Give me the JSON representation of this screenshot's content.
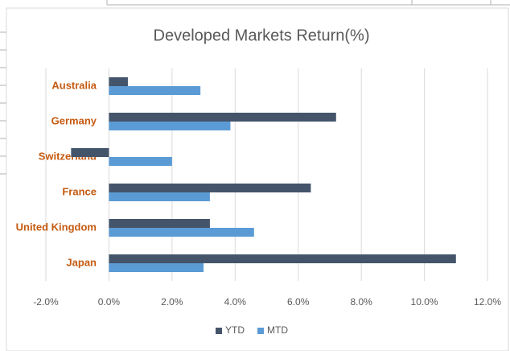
{
  "chart_data": {
    "type": "bar",
    "orientation": "horizontal",
    "title": "Developed Markets Return(%)",
    "categories": [
      "Australia",
      "Germany",
      "Switzerland",
      "France",
      "United Kingdom",
      "Japan"
    ],
    "series": [
      {
        "name": "YTD",
        "color": "#44546a",
        "values": [
          0.6,
          7.2,
          -1.2,
          6.4,
          3.2,
          11.0
        ]
      },
      {
        "name": "MTD",
        "color": "#5b9bd5",
        "values": [
          2.9,
          3.85,
          2.0,
          3.2,
          4.6,
          3.0
        ]
      }
    ],
    "xlim": [
      -2,
      12
    ],
    "xticks": [
      {
        "value": -2,
        "label": "-2.0%"
      },
      {
        "value": 0,
        "label": "0.0%"
      },
      {
        "value": 2,
        "label": "2.0%"
      },
      {
        "value": 4,
        "label": "4.0%"
      },
      {
        "value": 6,
        "label": "6.0%"
      },
      {
        "value": 8,
        "label": "8.0%"
      },
      {
        "value": 10,
        "label": "10.0%"
      },
      {
        "value": 12,
        "label": "12.0%"
      }
    ],
    "grid": true,
    "legend": "bottom"
  }
}
